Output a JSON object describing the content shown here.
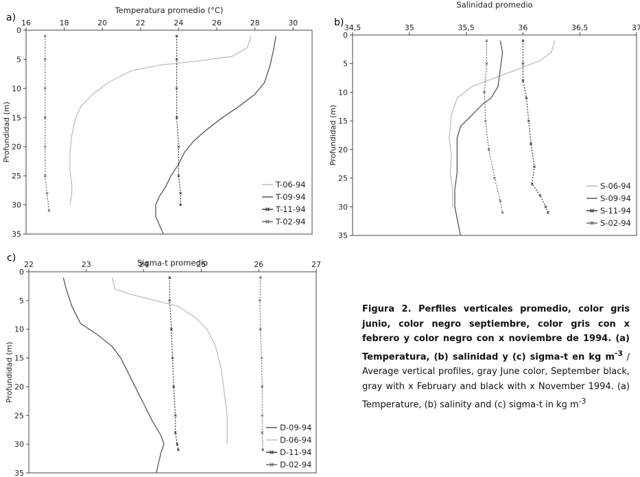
{
  "caption": {
    "bold_part1": "Figura 2. Perfiles verticales promedio, color gris junio, color negro septiembre, color gris con x febrero y color negro con x noviembre de 1994. (a) Temperatura, (b) salinidad y (c) sigma-t en kg m",
    "bold_sup": "-3",
    "normal_part1": " / Average vertical profiles, gray June color, September black, gray with x February and black with x November 1994. (a) Temperature, (b) salinity and (c) sigma-t in kg m",
    "normal_sup": "-3"
  },
  "chart_data": [
    {
      "id": "a",
      "panel_label": "a)",
      "type": "line",
      "title": "Temperatura promedio (°C)",
      "ylabel": "Profundidad (m)",
      "xlim": [
        16,
        31
      ],
      "ylim": [
        0,
        35
      ],
      "y_inverted": true,
      "x_ticks": [
        "16",
        "18",
        "20",
        "22",
        "24",
        "26",
        "28",
        "30"
      ],
      "x_tick_values": [
        16,
        18,
        20,
        22,
        24,
        26,
        28,
        30
      ],
      "y_ticks": [
        "0",
        "5",
        "10",
        "15",
        "20",
        "25",
        "30",
        "35"
      ],
      "y_tick_values": [
        0,
        5,
        10,
        15,
        20,
        25,
        30,
        35
      ],
      "legend_position": "bottom-right",
      "series": [
        {
          "name": "T-06-94",
          "color": "#bdbdbd",
          "style": "plain",
          "points": [
            [
              27.8,
              1
            ],
            [
              27.6,
              3
            ],
            [
              26.8,
              4.5
            ],
            [
              25,
              5.3
            ],
            [
              23,
              6
            ],
            [
              21.5,
              7
            ],
            [
              20.3,
              9
            ],
            [
              19.5,
              11
            ],
            [
              18.9,
              13
            ],
            [
              18.6,
              15
            ],
            [
              18.4,
              18
            ],
            [
              18.3,
              21
            ],
            [
              18.3,
              24
            ],
            [
              18.4,
              26.5
            ],
            [
              18.4,
              28
            ],
            [
              18.3,
              30
            ]
          ]
        },
        {
          "name": "T-09-94",
          "color": "#555555",
          "style": "plain",
          "points": [
            [
              29.1,
              1
            ],
            [
              29,
              3
            ],
            [
              28.8,
              6
            ],
            [
              28.5,
              9
            ],
            [
              28,
              11
            ],
            [
              27.2,
              13
            ],
            [
              26.3,
              15
            ],
            [
              25.5,
              17
            ],
            [
              24.8,
              19
            ],
            [
              24.3,
              21
            ],
            [
              24,
              23
            ],
            [
              23.6,
              25
            ],
            [
              23.3,
              27
            ],
            [
              23,
              28.5
            ],
            [
              22.8,
              30
            ],
            [
              22.8,
              32
            ],
            [
              23,
              33.5
            ],
            [
              23.2,
              35
            ]
          ]
        },
        {
          "name": "T-11-94",
          "color": "#333333",
          "style": "x",
          "points": [
            [
              23.9,
              1
            ],
            [
              23.9,
              5
            ],
            [
              23.9,
              10
            ],
            [
              23.9,
              15
            ],
            [
              24,
              20
            ],
            [
              24,
              25
            ],
            [
              24.1,
              28
            ],
            [
              24.1,
              30
            ]
          ]
        },
        {
          "name": "T-02-94",
          "color": "#666666",
          "style": "x",
          "points": [
            [
              17,
              1
            ],
            [
              17,
              5
            ],
            [
              17,
              10
            ],
            [
              17,
              15
            ],
            [
              17,
              20
            ],
            [
              17,
              25
            ],
            [
              17.1,
              28
            ],
            [
              17.2,
              31
            ]
          ]
        }
      ]
    },
    {
      "id": "b",
      "panel_label": "b)",
      "type": "line",
      "title": "Salinidad promedio",
      "ylabel": "Profundidad (m)",
      "xlim": [
        34.5,
        37
      ],
      "ylim": [
        0,
        35
      ],
      "y_inverted": true,
      "x_ticks": [
        "34,5",
        "35",
        "35,5",
        "36",
        "36,5",
        "37"
      ],
      "x_tick_values": [
        34.5,
        35,
        35.5,
        36,
        36.5,
        37
      ],
      "y_ticks": [
        "0",
        "5",
        "10",
        "15",
        "20",
        "25",
        "30",
        "35"
      ],
      "y_tick_values": [
        0,
        5,
        10,
        15,
        20,
        25,
        30,
        35
      ],
      "legend_position": "bottom-right",
      "series": [
        {
          "name": "S-06-94",
          "color": "#bdbdbd",
          "style": "plain",
          "points": [
            [
              36.28,
              1
            ],
            [
              36.25,
              3
            ],
            [
              36.15,
              4.5
            ],
            [
              35.95,
              6
            ],
            [
              35.75,
              7.5
            ],
            [
              35.55,
              9
            ],
            [
              35.42,
              11
            ],
            [
              35.37,
              14
            ],
            [
              35.35,
              18
            ],
            [
              35.37,
              21
            ],
            [
              35.36,
              24
            ],
            [
              35.38,
              27
            ],
            [
              35.38,
              30
            ]
          ]
        },
        {
          "name": "S-09-94",
          "color": "#555555",
          "style": "plain",
          "points": [
            [
              35.8,
              1
            ],
            [
              35.82,
              3
            ],
            [
              35.8,
              6
            ],
            [
              35.78,
              9
            ],
            [
              35.72,
              11
            ],
            [
              35.65,
              12
            ],
            [
              35.55,
              14
            ],
            [
              35.45,
              16
            ],
            [
              35.42,
              18
            ],
            [
              35.42,
              21
            ],
            [
              35.42,
              24
            ],
            [
              35.4,
              27
            ],
            [
              35.4,
              30
            ],
            [
              35.43,
              33
            ],
            [
              35.45,
              35
            ]
          ]
        },
        {
          "name": "S-11-94",
          "color": "#333333",
          "style": "x",
          "points": [
            [
              36,
              1
            ],
            [
              36,
              5
            ],
            [
              36,
              8
            ],
            [
              36.03,
              11
            ],
            [
              36.05,
              15
            ],
            [
              36.07,
              19
            ],
            [
              36.1,
              23
            ],
            [
              36.08,
              26
            ],
            [
              36.15,
              28
            ],
            [
              36.2,
              30
            ],
            [
              36.22,
              31
            ]
          ]
        },
        {
          "name": "S-02-94",
          "color": "#666666",
          "style": "x",
          "points": [
            [
              35.68,
              1
            ],
            [
              35.68,
              5
            ],
            [
              35.66,
              10
            ],
            [
              35.67,
              15
            ],
            [
              35.7,
              20
            ],
            [
              35.75,
              25
            ],
            [
              35.8,
              29
            ],
            [
              35.82,
              31
            ]
          ]
        }
      ]
    },
    {
      "id": "c",
      "panel_label": "c)",
      "type": "line",
      "title": "Sigma-t promedio",
      "ylabel": "Profundidad (m)",
      "xlim": [
        22,
        27
      ],
      "ylim": [
        0,
        35
      ],
      "y_inverted": true,
      "x_ticks": [
        "22",
        "23",
        "24",
        "25",
        "26",
        "27"
      ],
      "x_tick_values": [
        22,
        23,
        24,
        25,
        26,
        27
      ],
      "y_ticks": [
        "0",
        "5",
        "10",
        "15",
        "20",
        "25",
        "30",
        "35"
      ],
      "y_tick_values": [
        0,
        5,
        10,
        15,
        20,
        25,
        30,
        35
      ],
      "legend_position": "bottom-right",
      "series": [
        {
          "name": "D-09-94",
          "color": "#555555",
          "style": "plain",
          "points": [
            [
              22.6,
              1
            ],
            [
              22.65,
              3
            ],
            [
              22.75,
              6
            ],
            [
              22.9,
              9
            ],
            [
              23.2,
              11
            ],
            [
              23.45,
              13
            ],
            [
              23.6,
              15
            ],
            [
              23.7,
              17
            ],
            [
              23.85,
              20
            ],
            [
              24,
              23
            ],
            [
              24.15,
              26
            ],
            [
              24.3,
              28.5
            ],
            [
              24.35,
              30
            ],
            [
              24.3,
              31.5
            ],
            [
              24.25,
              33.5
            ],
            [
              24.22,
              35
            ]
          ]
        },
        {
          "name": "D-06-94",
          "color": "#bdbdbd",
          "style": "plain",
          "points": [
            [
              23.45,
              1
            ],
            [
              23.5,
              3
            ],
            [
              23.8,
              4
            ],
            [
              24.2,
              5
            ],
            [
              24.6,
              6
            ],
            [
              24.9,
              8
            ],
            [
              25.1,
              10
            ],
            [
              25.25,
              13
            ],
            [
              25.35,
              17
            ],
            [
              25.4,
              21
            ],
            [
              25.45,
              25
            ],
            [
              25.45,
              28
            ],
            [
              25.45,
              30
            ]
          ]
        },
        {
          "name": "D-11-94",
          "color": "#333333",
          "style": "x",
          "points": [
            [
              24.45,
              1
            ],
            [
              24.45,
              5
            ],
            [
              24.48,
              10
            ],
            [
              24.5,
              15
            ],
            [
              24.52,
              20
            ],
            [
              24.55,
              25
            ],
            [
              24.55,
              28
            ],
            [
              24.58,
              30
            ],
            [
              24.6,
              31
            ]
          ]
        },
        {
          "name": "D-02-94",
          "color": "#666666",
          "style": "x",
          "points": [
            [
              26.03,
              1
            ],
            [
              26.02,
              5
            ],
            [
              26.03,
              10
            ],
            [
              26.05,
              15
            ],
            [
              26.06,
              20
            ],
            [
              26.06,
              25
            ],
            [
              26.06,
              28
            ],
            [
              26.07,
              31
            ]
          ]
        }
      ]
    }
  ]
}
